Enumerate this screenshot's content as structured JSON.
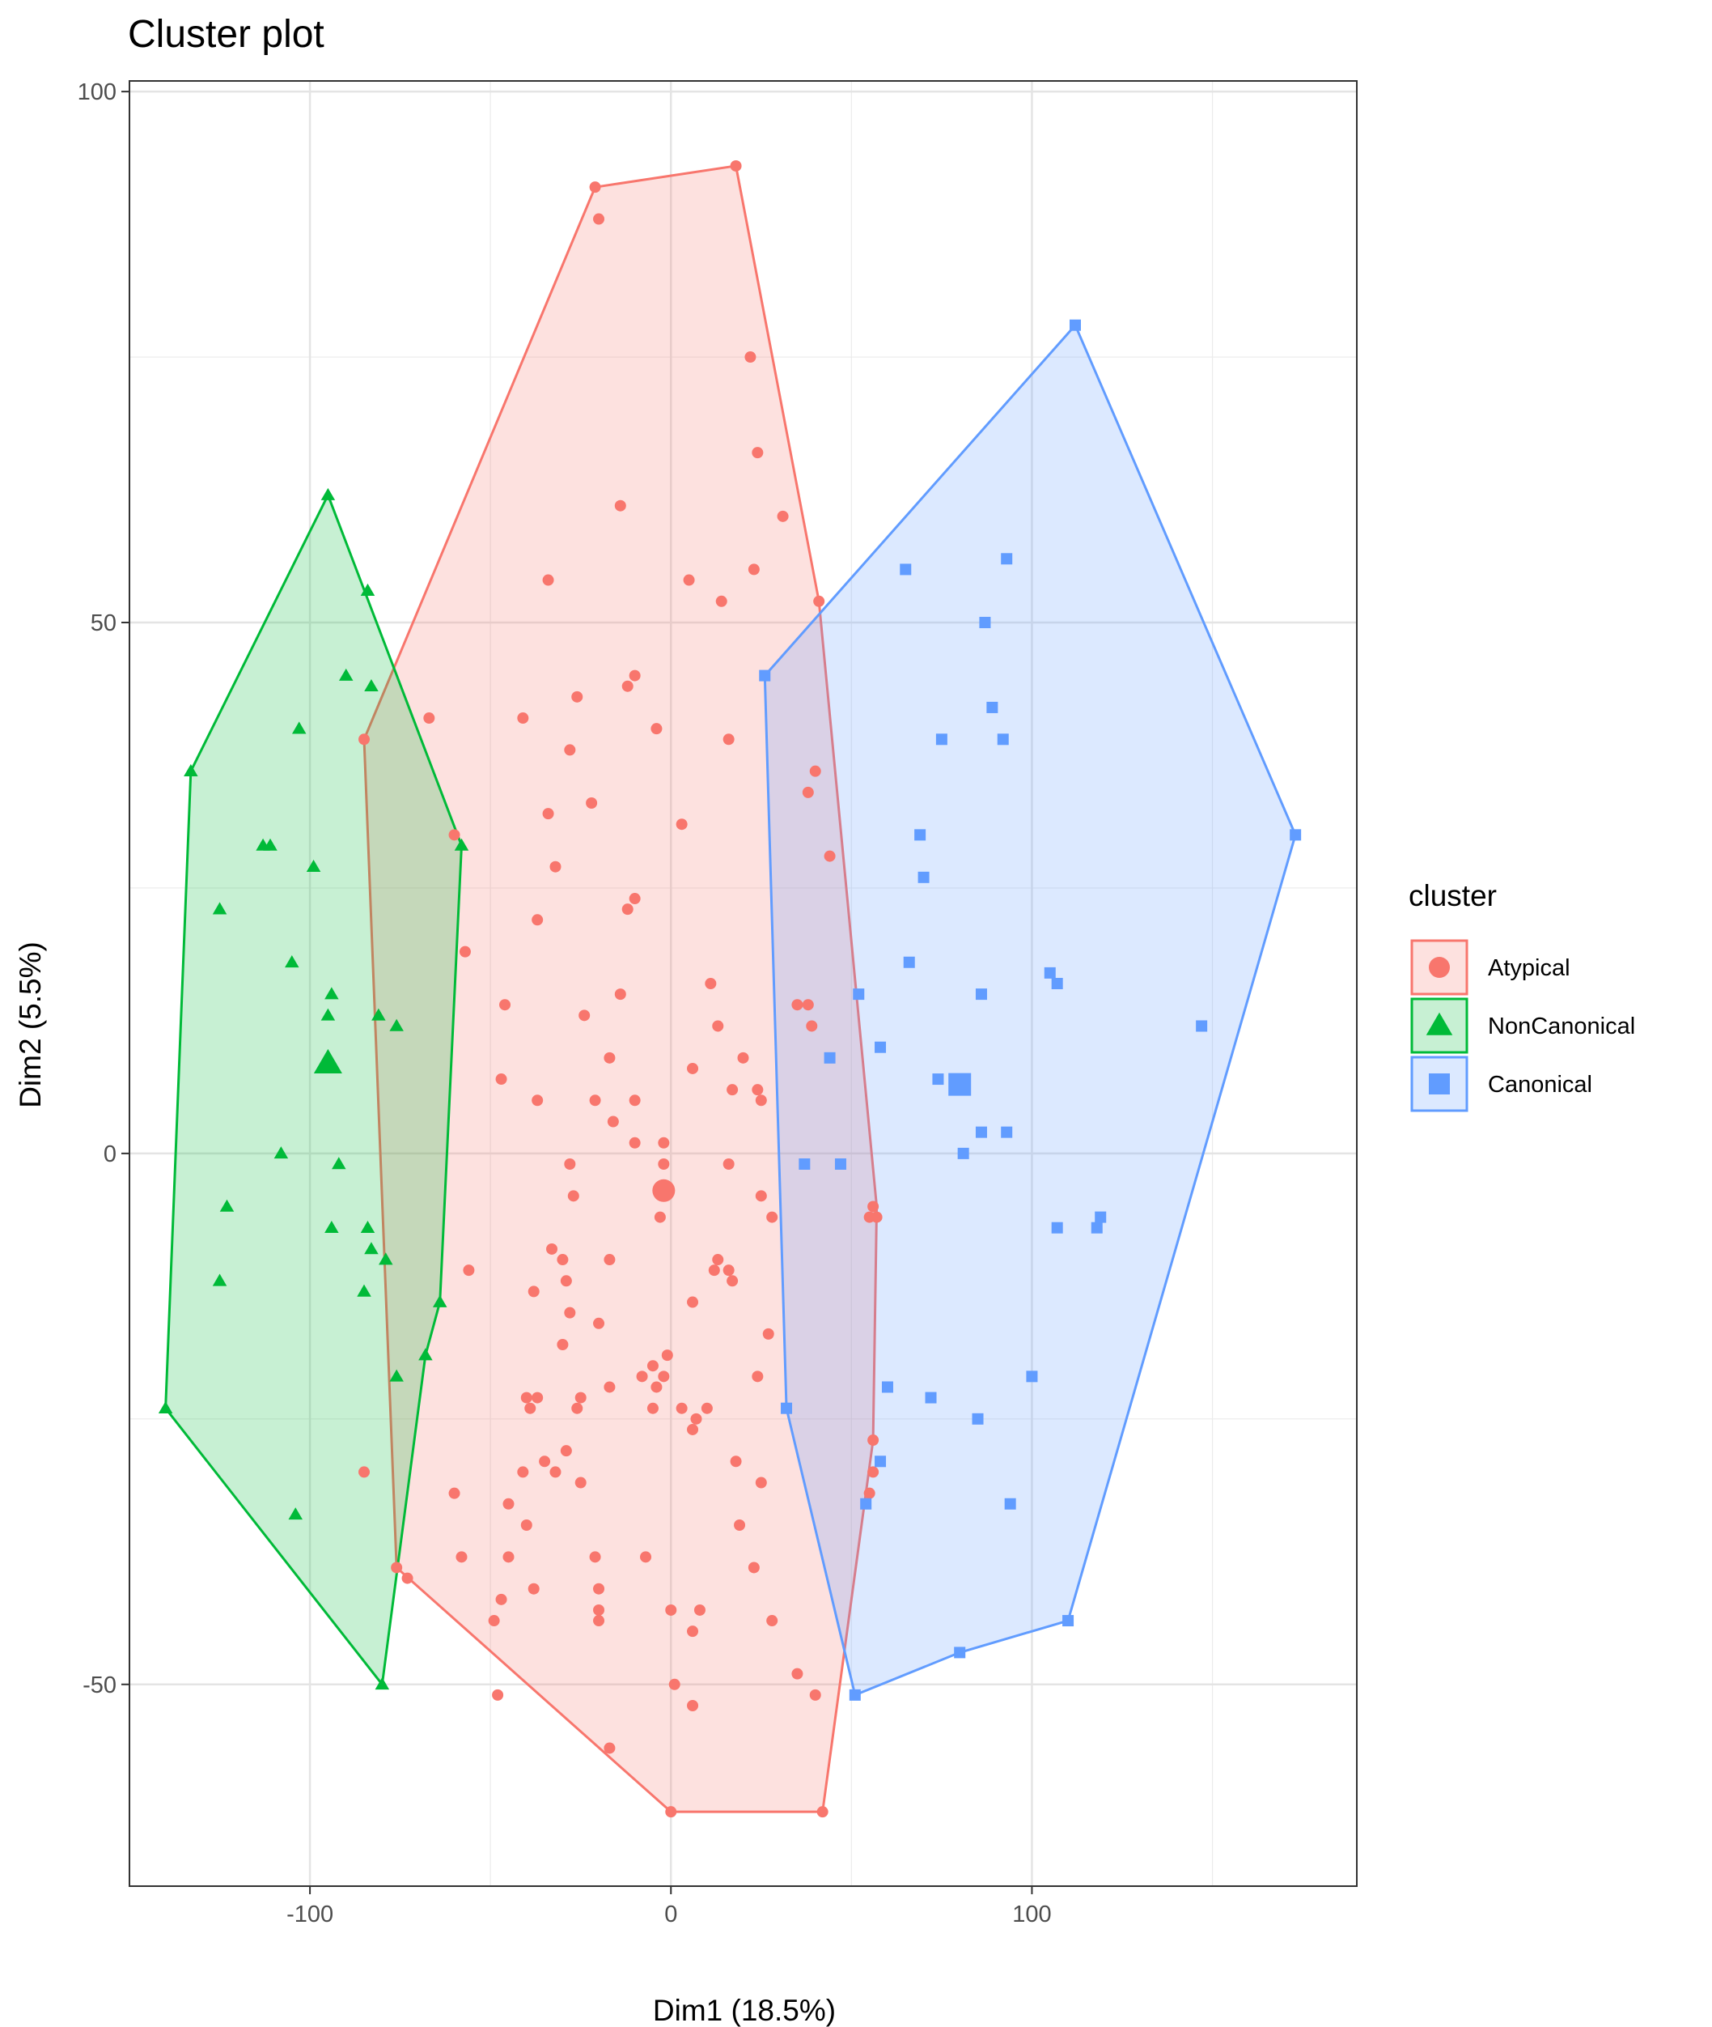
{
  "chart_data": {
    "type": "scatter",
    "title": "Cluster plot",
    "xlabel": "Dim1 (18.5%)",
    "ylabel": "Dim2 (5.5%)",
    "xlim": [
      -150,
      190
    ],
    "ylim": [
      -69,
      101
    ],
    "xticks": [
      -100,
      0,
      100
    ],
    "yticks": [
      -50,
      0,
      50,
      100
    ],
    "xtick_labels": [
      "-100",
      "0",
      "100"
    ],
    "ytick_labels": [
      "-50",
      "0",
      "50",
      "100"
    ],
    "grid": true,
    "legend": {
      "title": "cluster",
      "placement": "right"
    },
    "series": [
      {
        "name": "Atypical",
        "marker": "circle",
        "color": "#F8766D",
        "centroid": [
          -2,
          -3.5
        ],
        "hull": [
          [
            -85,
            39
          ],
          [
            -21,
            91
          ],
          [
            18,
            93
          ],
          [
            41,
            52
          ],
          [
            57,
            -5
          ],
          [
            56,
            -27
          ],
          [
            42,
            -62
          ],
          [
            0,
            -62
          ],
          [
            -76,
            -39
          ]
        ],
        "points": [
          [
            -21,
            91
          ],
          [
            18,
            93
          ],
          [
            -20,
            88
          ],
          [
            22,
            75
          ],
          [
            24,
            66
          ],
          [
            -14,
            61
          ],
          [
            31,
            60
          ],
          [
            -34,
            54
          ],
          [
            23,
            55
          ],
          [
            5,
            54
          ],
          [
            14,
            52
          ],
          [
            41,
            52
          ],
          [
            -12,
            44
          ],
          [
            -10,
            45
          ],
          [
            -41,
            41
          ],
          [
            -67,
            41
          ],
          [
            -26,
            43
          ],
          [
            -4,
            40
          ],
          [
            16,
            39
          ],
          [
            -28,
            38
          ],
          [
            -85,
            39
          ],
          [
            -34,
            32
          ],
          [
            -22,
            33
          ],
          [
            3,
            31
          ],
          [
            -60,
            30
          ],
          [
            -32,
            27
          ],
          [
            44,
            28
          ],
          [
            -37,
            22
          ],
          [
            -12,
            23
          ],
          [
            -10,
            24
          ],
          [
            -57,
            19
          ],
          [
            -14,
            15
          ],
          [
            -46,
            14
          ],
          [
            -24,
            13
          ],
          [
            11,
            16
          ],
          [
            13,
            12
          ],
          [
            39,
            12
          ],
          [
            -17,
            9
          ],
          [
            20,
            9
          ],
          [
            -47,
            7
          ],
          [
            6,
            8
          ],
          [
            -37,
            5
          ],
          [
            -21,
            5
          ],
          [
            -10,
            5
          ],
          [
            17,
            6
          ],
          [
            24,
            6
          ],
          [
            -16,
            3
          ],
          [
            25,
            5
          ],
          [
            -10,
            1
          ],
          [
            -2,
            1
          ],
          [
            -2,
            -1
          ],
          [
            -28,
            -1
          ],
          [
            16,
            -1
          ],
          [
            -27,
            -4
          ],
          [
            25,
            -4
          ],
          [
            -3,
            -6
          ],
          [
            28,
            -6
          ],
          [
            56,
            -5
          ],
          [
            -33,
            -9
          ],
          [
            -17,
            -10
          ],
          [
            -30,
            -10
          ],
          [
            13,
            -10
          ],
          [
            12,
            -11
          ],
          [
            16,
            -11
          ],
          [
            -56,
            -11
          ],
          [
            17,
            -12
          ],
          [
            -29,
            -12
          ],
          [
            -38,
            -13
          ],
          [
            -28,
            -15
          ],
          [
            6,
            -14
          ],
          [
            -20,
            -16
          ],
          [
            27,
            -17
          ],
          [
            -30,
            -18
          ],
          [
            -1,
            -19
          ],
          [
            -8,
            -21
          ],
          [
            -5,
            -20
          ],
          [
            -2,
            -21
          ],
          [
            -4,
            -22
          ],
          [
            -17,
            -22
          ],
          [
            24,
            -21
          ],
          [
            10,
            -24
          ],
          [
            -40,
            -23
          ],
          [
            -37,
            -23
          ],
          [
            -39,
            -24
          ],
          [
            -25,
            -23
          ],
          [
            -26,
            -24
          ],
          [
            3,
            -24
          ],
          [
            7,
            -25
          ],
          [
            -5,
            -24
          ],
          [
            6,
            -26
          ],
          [
            -29,
            -28
          ],
          [
            -35,
            -29
          ],
          [
            -41,
            -30
          ],
          [
            -32,
            -30
          ],
          [
            -25,
            -31
          ],
          [
            18,
            -29
          ],
          [
            25,
            -31
          ],
          [
            -60,
            -32
          ],
          [
            -45,
            -33
          ],
          [
            -40,
            -35
          ],
          [
            -73,
            -40
          ],
          [
            -45,
            -38
          ],
          [
            -58,
            -38
          ],
          [
            19,
            -35
          ],
          [
            23,
            -39
          ],
          [
            0,
            -43
          ],
          [
            -7,
            -38
          ],
          [
            -21,
            -38
          ],
          [
            -38,
            -41
          ],
          [
            -20,
            -41
          ],
          [
            -49,
            -44
          ],
          [
            -47,
            -42
          ],
          [
            -20,
            -43
          ],
          [
            8,
            -43
          ],
          [
            -20,
            -44
          ],
          [
            6,
            -45
          ],
          [
            28,
            -44
          ],
          [
            1,
            -50
          ],
          [
            -48,
            -51
          ],
          [
            35,
            -49
          ],
          [
            40,
            -51
          ],
          [
            0,
            -62
          ],
          [
            -17,
            -56
          ],
          [
            6,
            -52
          ],
          [
            42,
            -62
          ],
          [
            -76,
            -39
          ],
          [
            56,
            -27
          ],
          [
            56,
            -30
          ],
          [
            55,
            -32
          ],
          [
            57,
            -6
          ],
          [
            55,
            -6
          ],
          [
            -85,
            -30
          ],
          [
            35,
            14
          ],
          [
            40,
            36
          ],
          [
            38,
            34
          ],
          [
            38,
            14
          ]
        ]
      },
      {
        "name": "NonCanonical",
        "marker": "triangle",
        "color": "#00BA38",
        "centroid": [
          -95,
          8.5
        ],
        "hull": [
          [
            -95,
            62
          ],
          [
            -58,
            29
          ],
          [
            -64,
            -14
          ],
          [
            -68,
            -19
          ],
          [
            -80,
            -50
          ],
          [
            -140,
            -24
          ],
          [
            -133,
            36
          ]
        ],
        "points": [
          [
            -95,
            62
          ],
          [
            -84,
            53
          ],
          [
            -90,
            45
          ],
          [
            -83,
            44
          ],
          [
            -103,
            40
          ],
          [
            -133,
            36
          ],
          [
            -58,
            29
          ],
          [
            -113,
            29
          ],
          [
            -111,
            29
          ],
          [
            -99,
            27
          ],
          [
            -125,
            23
          ],
          [
            -105,
            18
          ],
          [
            -94,
            15
          ],
          [
            -95,
            13
          ],
          [
            -81,
            13
          ],
          [
            -76,
            12
          ],
          [
            -95,
            8.5
          ],
          [
            -108,
            0
          ],
          [
            -92,
            -1
          ],
          [
            -123,
            -5
          ],
          [
            -94,
            -7
          ],
          [
            -84,
            -7
          ],
          [
            -83,
            -9
          ],
          [
            -79,
            -10
          ],
          [
            -125,
            -12
          ],
          [
            -85,
            -13
          ],
          [
            -64,
            -14
          ],
          [
            -68,
            -19
          ],
          [
            -76,
            -21
          ],
          [
            -140,
            -24
          ],
          [
            -104,
            -34
          ],
          [
            -80,
            -50
          ]
        ]
      },
      {
        "name": "Canonical",
        "marker": "square",
        "color": "#619CFF",
        "centroid": [
          80,
          6.5
        ],
        "hull": [
          [
            112,
            78
          ],
          [
            173,
            30
          ],
          [
            110,
            -44
          ],
          [
            80,
            -47
          ],
          [
            51,
            -51
          ],
          [
            32,
            -24
          ],
          [
            26,
            45
          ]
        ],
        "points": [
          [
            112,
            78
          ],
          [
            93,
            56
          ],
          [
            65,
            55
          ],
          [
            87,
            50
          ],
          [
            26,
            45
          ],
          [
            89,
            42
          ],
          [
            75,
            39
          ],
          [
            92,
            39
          ],
          [
            173,
            30
          ],
          [
            69,
            30
          ],
          [
            70,
            26
          ],
          [
            66,
            18
          ],
          [
            105,
            17
          ],
          [
            107,
            16
          ],
          [
            52,
            15
          ],
          [
            86,
            15
          ],
          [
            147,
            12
          ],
          [
            58,
            10
          ],
          [
            44,
            9
          ],
          [
            74,
            7
          ],
          [
            80,
            6.5
          ],
          [
            86,
            2
          ],
          [
            93,
            2
          ],
          [
            81,
            0
          ],
          [
            47,
            -1
          ],
          [
            37,
            -1
          ],
          [
            107,
            -7
          ],
          [
            119,
            -6
          ],
          [
            118,
            -7
          ],
          [
            60,
            -22
          ],
          [
            72,
            -23
          ],
          [
            100,
            -21
          ],
          [
            85,
            -25
          ],
          [
            32,
            -24
          ],
          [
            58,
            -29
          ],
          [
            94,
            -33
          ],
          [
            54,
            -33
          ],
          [
            110,
            -44
          ],
          [
            80,
            -47
          ],
          [
            51,
            -51
          ]
        ]
      }
    ]
  }
}
